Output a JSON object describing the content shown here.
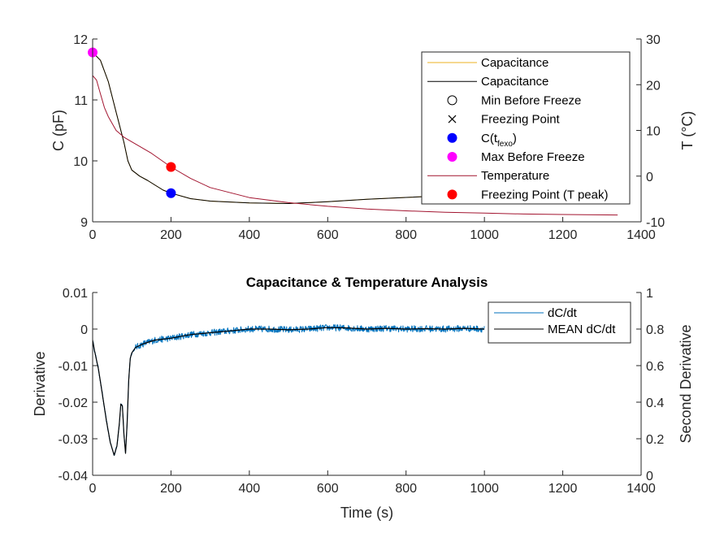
{
  "chart_data": [
    {
      "type": "line",
      "panel": "top",
      "title": "",
      "xlabel": "",
      "ylabel_left": "C (pF)",
      "ylabel_right": "T (°C)",
      "xlim": [
        0,
        1400
      ],
      "ylim_left": [
        9,
        12
      ],
      "ylim_right": [
        -10,
        30
      ],
      "xticks": [
        "0",
        "200",
        "400",
        "600",
        "800",
        "1000",
        "1200",
        "1400"
      ],
      "yticks_left": [
        "9",
        "10",
        "11",
        "12"
      ],
      "yticks_right": [
        "-10",
        "0",
        "10",
        "20",
        "30"
      ],
      "legend_position": "top-right",
      "legend": [
        {
          "label": "Capacitance",
          "style": "line",
          "color": "#EDB120"
        },
        {
          "label": "Capacitance",
          "style": "line",
          "color": "#000000"
        },
        {
          "label": "Min Before Freeze",
          "style": "circle-open",
          "color": "#000000"
        },
        {
          "label": "Freezing Point",
          "style": "x",
          "color": "#000000"
        },
        {
          "label": "C(t",
          "label_sub": "fexo",
          "label_end": ")",
          "style": "dot",
          "color": "#0000FF"
        },
        {
          "label": "Max Before Freeze",
          "style": "dot",
          "color": "#FF00FF"
        },
        {
          "label": "Temperature",
          "style": "line",
          "color": "#A2142F"
        },
        {
          "label": "Freezing Point (T peak)",
          "style": "dot",
          "color": "#FF0000"
        }
      ],
      "series": [
        {
          "name": "Capacitance",
          "axis": "left",
          "color": "#EDB120",
          "x": [
            0,
            20,
            40,
            60,
            80,
            90,
            100,
            120,
            140,
            160,
            180,
            200,
            250,
            300,
            400,
            500,
            600,
            700,
            800,
            900,
            1000
          ],
          "y": [
            11.78,
            11.65,
            11.3,
            10.8,
            10.3,
            10.0,
            9.85,
            9.75,
            9.68,
            9.6,
            9.52,
            9.47,
            9.38,
            9.34,
            9.31,
            9.3,
            9.33,
            9.37,
            9.4,
            9.43,
            9.45
          ]
        },
        {
          "name": "Capacitance",
          "axis": "left",
          "color": "#000000",
          "x": [
            0,
            20,
            40,
            60,
            80,
            90,
            100,
            120,
            140,
            160,
            180,
            200,
            250,
            300,
            400,
            500,
            600,
            700,
            800,
            900,
            1000
          ],
          "y": [
            11.78,
            11.65,
            11.3,
            10.8,
            10.3,
            10.0,
            9.85,
            9.75,
            9.68,
            9.6,
            9.52,
            9.47,
            9.38,
            9.34,
            9.31,
            9.3,
            9.33,
            9.37,
            9.4,
            9.43,
            9.45
          ]
        },
        {
          "name": "Temperature",
          "axis": "right",
          "color": "#A2142F",
          "x": [
            0,
            10,
            20,
            30,
            40,
            60,
            80,
            100,
            150,
            200,
            250,
            300,
            400,
            500,
            600,
            700,
            800,
            900,
            1000,
            1100,
            1200,
            1340
          ],
          "y": [
            22,
            21,
            18,
            15,
            13,
            10,
            8.5,
            7.5,
            5,
            2,
            -0.5,
            -2.5,
            -4.7,
            -5.8,
            -6.6,
            -7.2,
            -7.6,
            -7.9,
            -8.1,
            -8.3,
            -8.4,
            -8.5
          ]
        }
      ],
      "markers": [
        {
          "name": "Max Before Freeze",
          "axis": "left",
          "x": 0,
          "y": 11.78,
          "color": "#FF00FF"
        },
        {
          "name": "C(tfexo)",
          "axis": "left",
          "x": 200,
          "y": 9.47,
          "color": "#0000FF"
        },
        {
          "name": "Freezing Point (T peak)",
          "axis": "right",
          "x": 200,
          "y": 2,
          "color": "#FF0000"
        }
      ]
    },
    {
      "type": "line",
      "panel": "bottom",
      "title": "Capacitance & Temperature Analysis",
      "xlabel": "Time (s)",
      "ylabel_left": "Derivative",
      "ylabel_right": "Second Derivative",
      "xlim": [
        0,
        1400
      ],
      "ylim_left": [
        -0.04,
        0.01
      ],
      "ylim_right": [
        0,
        1
      ],
      "xticks": [
        "0",
        "200",
        "400",
        "600",
        "800",
        "1000",
        "1200",
        "1400"
      ],
      "yticks_left": [
        "-0.04",
        "-0.03",
        "-0.02",
        "-0.01",
        "0",
        "0.01"
      ],
      "yticks_right": [
        "0",
        "0.2",
        "0.4",
        "0.6",
        "0.8",
        "1"
      ],
      "legend_position": "top-right",
      "legend": [
        {
          "label": "dC/dt",
          "style": "line",
          "color": "#0072BD"
        },
        {
          "label": "MEAN dC/dt",
          "style": "line",
          "color": "#000000"
        }
      ],
      "series": [
        {
          "name": "dC/dt",
          "color": "#0072BD",
          "noise": 0.0009,
          "x": [
            0,
            5,
            15,
            25,
            35,
            45,
            55,
            62,
            68,
            72,
            76,
            80,
            84,
            88,
            92,
            96,
            100,
            110,
            130,
            160,
            200,
            250,
            300,
            350,
            400,
            450,
            500,
            550,
            600,
            650,
            700,
            750,
            800,
            850,
            900,
            950,
            1000
          ],
          "y": [
            -0.003,
            -0.006,
            -0.011,
            -0.018,
            -0.025,
            -0.031,
            -0.0345,
            -0.032,
            -0.026,
            -0.0205,
            -0.021,
            -0.029,
            -0.034,
            -0.026,
            -0.014,
            -0.008,
            -0.0065,
            -0.005,
            -0.004,
            -0.003,
            -0.0025,
            -0.0015,
            -0.001,
            -0.0005,
            0.0,
            0.0,
            -0.0002,
            0.0,
            0.0004,
            0.0003,
            0.0,
            0.0002,
            0.0,
            0.0001,
            0.0,
            0.0002,
            0.0
          ]
        },
        {
          "name": "MEAN dC/dt",
          "color": "#000000",
          "x": [
            0,
            5,
            15,
            25,
            35,
            45,
            55,
            62,
            68,
            72,
            76,
            80,
            84,
            88,
            92,
            96,
            100,
            110,
            130,
            160,
            200,
            250,
            300,
            350,
            400,
            450,
            500,
            550,
            600,
            650,
            700,
            750,
            800,
            850,
            900,
            950,
            1000
          ],
          "y": [
            -0.003,
            -0.006,
            -0.011,
            -0.018,
            -0.025,
            -0.031,
            -0.0345,
            -0.032,
            -0.026,
            -0.0205,
            -0.021,
            -0.029,
            -0.034,
            -0.026,
            -0.014,
            -0.008,
            -0.0065,
            -0.005,
            -0.004,
            -0.003,
            -0.0025,
            -0.0015,
            -0.001,
            -0.0005,
            0.0,
            0.0,
            -0.0002,
            0.0,
            0.0004,
            0.0003,
            0.0,
            0.0002,
            0.0,
            0.0001,
            0.0,
            0.0002,
            0.0
          ]
        }
      ]
    }
  ]
}
